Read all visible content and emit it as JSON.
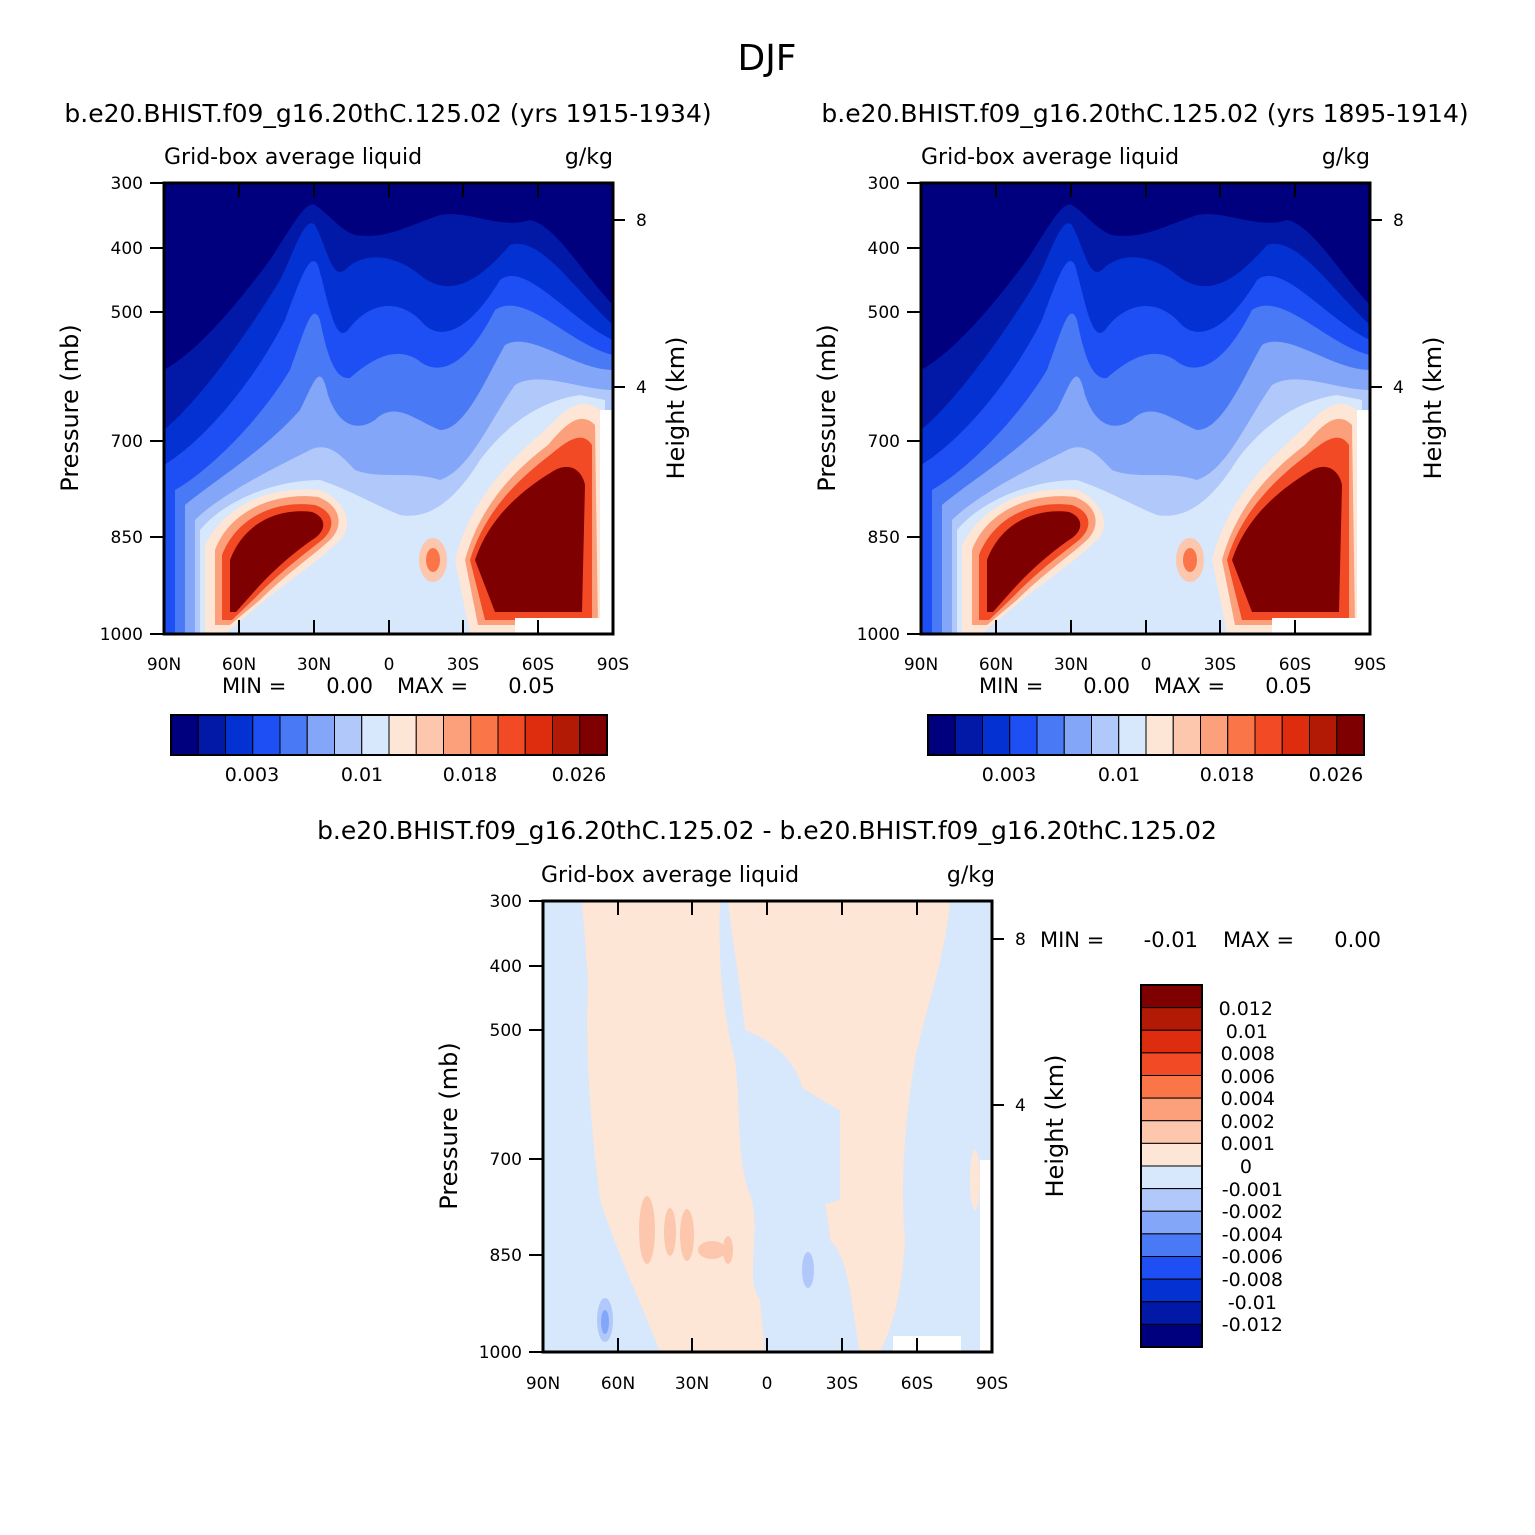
{
  "figure": {
    "season_title": "DJF"
  },
  "chart_data": [
    {
      "type": "heatmap",
      "panel": "top-left",
      "title": "b.e20.BHIST.f09_g16.20thC.125.02 (yrs 1915-1934)",
      "left_label": "Grid-box average liquid",
      "right_label": "g/kg",
      "ylabel": "Pressure (mb)",
      "ylabel_right": "Height (km)",
      "x_ticks": [
        "90N",
        "60N",
        "30N",
        "0",
        "30S",
        "60S",
        "90S"
      ],
      "y_ticks": [
        "300",
        "400",
        "500",
        "700",
        "850",
        "1000"
      ],
      "y_right_ticks": [
        "8",
        "4"
      ],
      "min_label": "MIN =",
      "min_value": "0.00",
      "max_label": "MAX =",
      "max_value": "0.05",
      "colorbar_orientation": "horizontal",
      "colorbar_labels": [
        "0.003",
        "0.01",
        "0.018",
        "0.026"
      ],
      "colorbar_colors": [
        "#00007f",
        "#0219a8",
        "#0431d1",
        "#1e4ff5",
        "#4a79f5",
        "#84a6f8",
        "#b1c8fa",
        "#d7e7fc",
        "#fde6d6",
        "#fcc7ad",
        "#fca07c",
        "#fa7649",
        "#f24a24",
        "#dd2c0e",
        "#b31a06",
        "#7f0000"
      ]
    },
    {
      "type": "heatmap",
      "panel": "top-right",
      "title": "b.e20.BHIST.f09_g16.20thC.125.02 (yrs 1895-1914)",
      "left_label": "Grid-box average liquid",
      "right_label": "g/kg",
      "ylabel": "Pressure (mb)",
      "ylabel_right": "Height (km)",
      "x_ticks": [
        "90N",
        "60N",
        "30N",
        "0",
        "30S",
        "60S",
        "90S"
      ],
      "y_ticks": [
        "300",
        "400",
        "500",
        "700",
        "850",
        "1000"
      ],
      "y_right_ticks": [
        "8",
        "4"
      ],
      "min_label": "MIN =",
      "min_value": "0.00",
      "max_label": "MAX =",
      "max_value": "0.05",
      "colorbar_orientation": "horizontal",
      "colorbar_labels": [
        "0.003",
        "0.01",
        "0.018",
        "0.026"
      ],
      "colorbar_colors": [
        "#00007f",
        "#0219a8",
        "#0431d1",
        "#1e4ff5",
        "#4a79f5",
        "#84a6f8",
        "#b1c8fa",
        "#d7e7fc",
        "#fde6d6",
        "#fcc7ad",
        "#fca07c",
        "#fa7649",
        "#f24a24",
        "#dd2c0e",
        "#b31a06",
        "#7f0000"
      ]
    },
    {
      "type": "heatmap",
      "panel": "bottom-difference",
      "title": "b.e20.BHIST.f09_g16.20thC.125.02 - b.e20.BHIST.f09_g16.20thC.125.02",
      "left_label": "Grid-box average liquid",
      "right_label": "g/kg",
      "ylabel": "Pressure (mb)",
      "ylabel_right": "Height (km)",
      "x_ticks": [
        "90N",
        "60N",
        "30N",
        "0",
        "30S",
        "60S",
        "90S"
      ],
      "y_ticks": [
        "300",
        "400",
        "500",
        "700",
        "850",
        "1000"
      ],
      "y_right_ticks": [
        "8",
        "4"
      ],
      "min_label": "MIN =",
      "min_value": "-0.01",
      "max_label": "MAX =",
      "max_value": "0.00",
      "colorbar_orientation": "vertical",
      "colorbar_labels": [
        "0.012",
        "0.01",
        "0.008",
        "0.006",
        "0.004",
        "0.002",
        "0.001",
        "0",
        "-0.001",
        "-0.002",
        "-0.004",
        "-0.006",
        "-0.008",
        "-0.01",
        "-0.012"
      ],
      "colorbar_colors": [
        "#7f0000",
        "#b31a06",
        "#dd2c0e",
        "#f24a24",
        "#fa7649",
        "#fca07c",
        "#fcc7ad",
        "#fde6d6",
        "#d7e7fc",
        "#b1c8fa",
        "#84a6f8",
        "#4a79f5",
        "#1e4ff5",
        "#0431d1",
        "#0219a8",
        "#00007f"
      ]
    }
  ]
}
